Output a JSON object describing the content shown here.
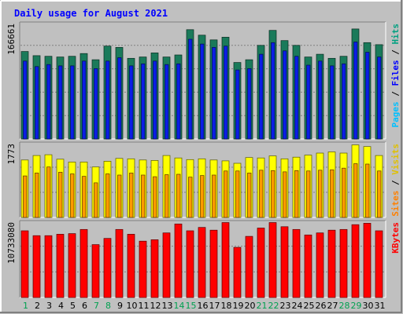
{
  "chart_data": {
    "type": "bar",
    "title": "Daily usage for August 2021",
    "days": [
      "1",
      "2",
      "3",
      "4",
      "5",
      "6",
      "7",
      "8",
      "9",
      "10",
      "11",
      "12",
      "13",
      "14",
      "15",
      "16",
      "17",
      "18",
      "19",
      "20",
      "21",
      "22",
      "23",
      "24",
      "25",
      "26",
      "27",
      "28",
      "29",
      "30",
      "31"
    ],
    "weekend_days": [
      1,
      7,
      8,
      14,
      15,
      21,
      22,
      28,
      29
    ],
    "panels": [
      {
        "name": "hits-files-pages",
        "max_label": "166661",
        "ymax": 166661,
        "side_label_parts": [
          {
            "text": "Pages",
            "color": "#00c0ff"
          },
          {
            "text": " / ",
            "color": "#000000"
          },
          {
            "text": "Files",
            "color": "#0000ff"
          },
          {
            "text": " / ",
            "color": "#000000"
          },
          {
            "text": "Hits",
            "color": "#00a080"
          }
        ],
        "series": [
          {
            "name": "Hits",
            "color": "#1a7a5a",
            "values": [
              128000,
              122000,
              121000,
              120000,
              121000,
              125000,
              116000,
              136000,
              134000,
              118000,
              120000,
              126000,
              120000,
              123000,
              160000,
              152000,
              145000,
              149000,
              112000,
              116000,
              137000,
              159000,
              144000,
              137000,
              120000,
              124000,
              118000,
              121000,
              161000,
              141000,
              138000
            ]
          },
          {
            "name": "Files",
            "color": "#0a1ee6",
            "values": [
              114000,
              106000,
              109000,
              107000,
              107000,
              114000,
              103000,
              114000,
              119000,
              107000,
              110000,
              114000,
              109000,
              110000,
              146000,
              139000,
              134000,
              136000,
              101000,
              103000,
              124000,
              141000,
              129000,
              121000,
              108000,
              114000,
              107000,
              110000,
              142000,
              127000,
              120000
            ]
          },
          {
            "name": "Pages",
            "color": "#2db0f0",
            "values": [
              5000,
              10000,
              10000,
              9000,
              10000,
              9000,
              10000,
              13000,
              13000,
              14000,
              14000,
              19000,
              18000,
              17000,
              18000,
              18000,
              20000,
              22000,
              21000,
              18000,
              18000,
              21000,
              18000,
              17000,
              18000,
              19000,
              17000,
              17000,
              17000,
              17000,
              17000
            ]
          }
        ]
      },
      {
        "name": "visits-sites",
        "max_label": "1773",
        "ymax": 1773,
        "side_label_parts": [
          {
            "text": "Sites",
            "color": "#ff8000"
          },
          {
            "text": " / ",
            "color": "#000000"
          },
          {
            "text": "Visits",
            "color": "#e0c000"
          }
        ],
        "series": [
          {
            "name": "Visits",
            "color": "#ffff00",
            "values": [
              1410,
              1520,
              1540,
              1430,
              1360,
              1360,
              1240,
              1380,
              1450,
              1440,
              1410,
              1400,
              1520,
              1460,
              1420,
              1440,
              1410,
              1390,
              1330,
              1470,
              1460,
              1510,
              1440,
              1480,
              1530,
              1580,
              1610,
              1580,
              1780,
              1740,
              1520
            ]
          },
          {
            "name": "Sites",
            "color": "#ff9a00",
            "values": [
              1020,
              1090,
              1240,
              1110,
              1070,
              1010,
              850,
              1070,
              1040,
              1090,
              1040,
              1000,
              1050,
              1060,
              990,
              1030,
              1040,
              1140,
              1140,
              1090,
              1160,
              1150,
              1120,
              1150,
              1140,
              1160,
              1170,
              1210,
              1320,
              1310,
              1140
            ]
          }
        ]
      },
      {
        "name": "kbytes",
        "max_label": "10733080",
        "ymax": 10733080,
        "side_label_parts": [
          {
            "text": "KBytes",
            "color": "#ff0000"
          }
        ],
        "series": [
          {
            "name": "KBytes",
            "color": "#ff0000",
            "values": [
              9700000,
              9000000,
              9000000,
              9200000,
              9300000,
              9900000,
              7700000,
              8600000,
              9900000,
              9200000,
              8200000,
              8400000,
              9400000,
              10700000,
              9700000,
              10200000,
              9800000,
              10900000,
              7300000,
              8900000,
              10100000,
              10900000,
              10300000,
              9900000,
              9100000,
              9400000,
              9800000,
              9900000,
              10600000,
              10800000,
              9700000
            ]
          }
        ]
      }
    ]
  },
  "colors": {
    "background": "#c0c0c0",
    "title": "#0000ff",
    "weekday_label": "#000000",
    "weekend_label": "#00a050"
  }
}
